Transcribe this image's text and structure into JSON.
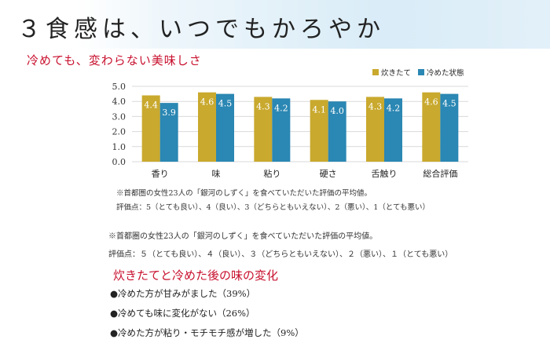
{
  "header": {
    "title": "３食感は、いつでもかろやか",
    "subtitle": "冷めても、変わらない美味しさ"
  },
  "chart_data": {
    "type": "bar",
    "categories": [
      "香り",
      "味",
      "粘り",
      "硬さ",
      "舌触り",
      "総合評価"
    ],
    "series": [
      {
        "name": "炊きたて",
        "values": [
          4.4,
          4.6,
          4.3,
          4.1,
          4.3,
          4.6
        ],
        "labels": [
          "4.4",
          "4.6",
          "4.3",
          "4.1",
          "4.3",
          "4.6"
        ],
        "color": "#c9a92e"
      },
      {
        "name": "冷めた状態",
        "values": [
          3.9,
          4.5,
          4.2,
          4.0,
          4.2,
          4.5
        ],
        "labels": [
          "3.9",
          "4.5",
          "4.2",
          "4.0",
          "4.2",
          "4.5"
        ],
        "color": "#2b87b3"
      }
    ],
    "ylim": [
      0,
      5
    ],
    "yticks": [
      "0.0",
      "1.0",
      "2.0",
      "3.0",
      "4.0",
      "5.0"
    ],
    "grid": true,
    "legend_position": "top-right",
    "xlabel": "",
    "ylabel": ""
  },
  "notes": {
    "small": [
      "※首都圏の女性23人の「銀河のしずく」を食べていただいた評価の平均値。",
      "評価点：5（とても良い）、4（良い）、3（どちらともいえない）、2（悪い）、1（とても悪い）"
    ],
    "large": [
      "※首都圏の女性23人の「銀河のしずく」を食べていただいた評価の平均値。",
      "評価点：５（とても良い）、４（良い）、３（どちらともいえない）、２（悪い）、１（とても悪い）"
    ]
  },
  "changes": {
    "title": "炊きたてと冷めた後の味の変化",
    "items": [
      "●冷めた方が甘みがました（39%）",
      "●冷めても味に変化がない（26%）",
      "●冷めた方が粘り・モチモチ感が増した（9%）"
    ]
  }
}
